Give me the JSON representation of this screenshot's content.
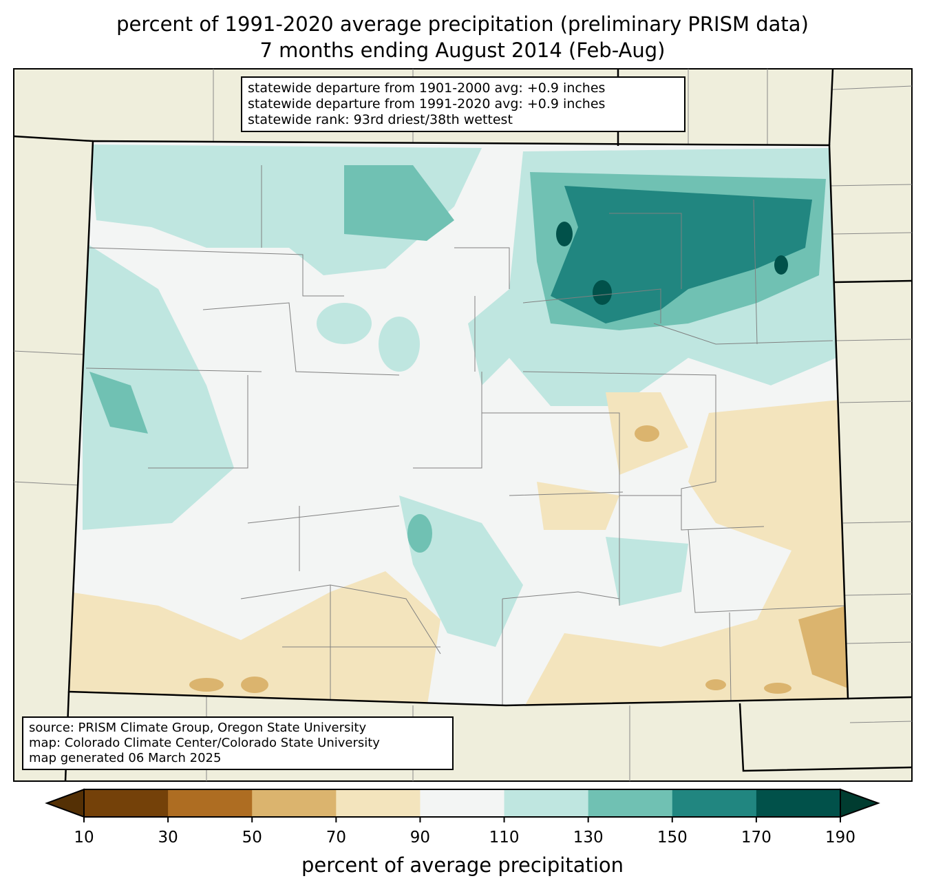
{
  "title": {
    "line1": "percent of 1991-2020 average precipitation (preliminary PRISM data)",
    "line2": "7 months ending August 2014 (Feb-Aug)"
  },
  "stats": {
    "line1": "statewide departure from 1901-2000 avg: +0.9 inches",
    "line2": "statewide departure from 1991-2020 avg: +0.9 inches",
    "line3": "statewide rank: 93rd driest/38th wettest"
  },
  "source": {
    "line1": "source: PRISM Climate Group, Oregon State University",
    "line2": "map: Colorado Climate Center/Colorado State University",
    "line3": "map generated 06 March 2025"
  },
  "colorbar": {
    "label": "percent of average precipitation",
    "ticks": [
      "10",
      "30",
      "50",
      "70",
      "90",
      "110",
      "130",
      "150",
      "170",
      "190"
    ],
    "under_color": "#543005",
    "over_color": "#003c30",
    "colors": [
      "#744109",
      "#ae6d22",
      "#dbb46e",
      "#f3e4bd",
      "#f3f5f4",
      "#bfe6e0",
      "#70c1b3",
      "#218680",
      "#01514a"
    ]
  },
  "map": {
    "background_color": "#efeedc",
    "state": "Colorado"
  }
}
